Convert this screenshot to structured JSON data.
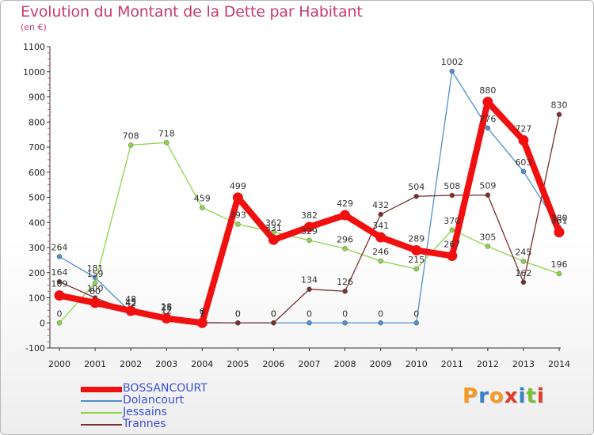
{
  "title": "Evolution du Montant de la Dette par Habitant",
  "unit": "(en €)",
  "logo": {
    "text": "Proxiti",
    "colors": [
      "#f39a1f",
      "#3b82c4",
      "#f39a1f",
      "#e03a2b",
      "#3b82c4",
      "#7cbf3a",
      "#e03a2b"
    ]
  },
  "chart_data": {
    "type": "line",
    "x": [
      "2000",
      "2001",
      "2002",
      "2003",
      "2004",
      "2005",
      "2006",
      "2007",
      "2008",
      "2009",
      "2010",
      "2011",
      "2012",
      "2013",
      "2014"
    ],
    "ylim": [
      -100,
      1100
    ],
    "yticks": [
      "-100",
      "0",
      "100",
      "200",
      "300",
      "400",
      "500",
      "600",
      "700",
      "800",
      "900",
      "1000",
      "1100"
    ],
    "grid": false,
    "legend_position": "bottom-left",
    "series": [
      {
        "name": "Dolancourt",
        "color": "#4f8fcf",
        "width": 1.3,
        "values": [
          264,
          181,
          42,
          12,
          1,
          0,
          0,
          0,
          0,
          0,
          0,
          1002,
          776,
          603,
          380
        ],
        "labels": [
          "264",
          "181",
          "42",
          "12",
          "1",
          "0",
          "0",
          "0",
          "0",
          "0",
          "0",
          "1002",
          "776",
          "603",
          "380"
        ]
      },
      {
        "name": "Jessains",
        "color": "#8fd44a",
        "width": 1.3,
        "values": [
          0,
          159,
          708,
          718,
          459,
          393,
          362,
          329,
          296,
          246,
          215,
          370,
          305,
          245,
          196
        ],
        "labels": [
          "0",
          "159",
          "708",
          "718",
          "459",
          "393",
          "362",
          "329",
          "296",
          "246",
          "215",
          "370",
          "305",
          "245",
          "196"
        ]
      },
      {
        "name": "Trannes",
        "color": "#7a2e2e",
        "width": 1.3,
        "values": [
          164,
          100,
          45,
          25,
          1,
          0,
          0,
          134,
          126,
          432,
          504,
          508,
          509,
          162,
          830
        ],
        "labels": [
          "164",
          "100",
          "45",
          "25",
          "1",
          "0",
          "0",
          "134",
          "126",
          "432",
          "504",
          "508",
          "509",
          "162",
          "830"
        ]
      },
      {
        "name": "BOSSANCOURT",
        "color": "#f01010",
        "width": 8,
        "values": [
          109,
          80,
          48,
          18,
          0,
          499,
          331,
          382,
          429,
          341,
          289,
          267,
          880,
          727,
          361
        ],
        "labels": [
          "109",
          "80",
          "48",
          "18",
          "0",
          "499",
          "331",
          "382",
          "429",
          "341",
          "289",
          "267",
          "880",
          "727",
          "361"
        ]
      }
    ]
  },
  "legend": [
    {
      "label": "BOSSANCOURT",
      "color": "#f01010"
    },
    {
      "label": "Dolancourt",
      "color": "#4f8fcf"
    },
    {
      "label": "Jessains",
      "color": "#8fd44a"
    },
    {
      "label": "Trannes",
      "color": "#7a2e2e"
    }
  ]
}
